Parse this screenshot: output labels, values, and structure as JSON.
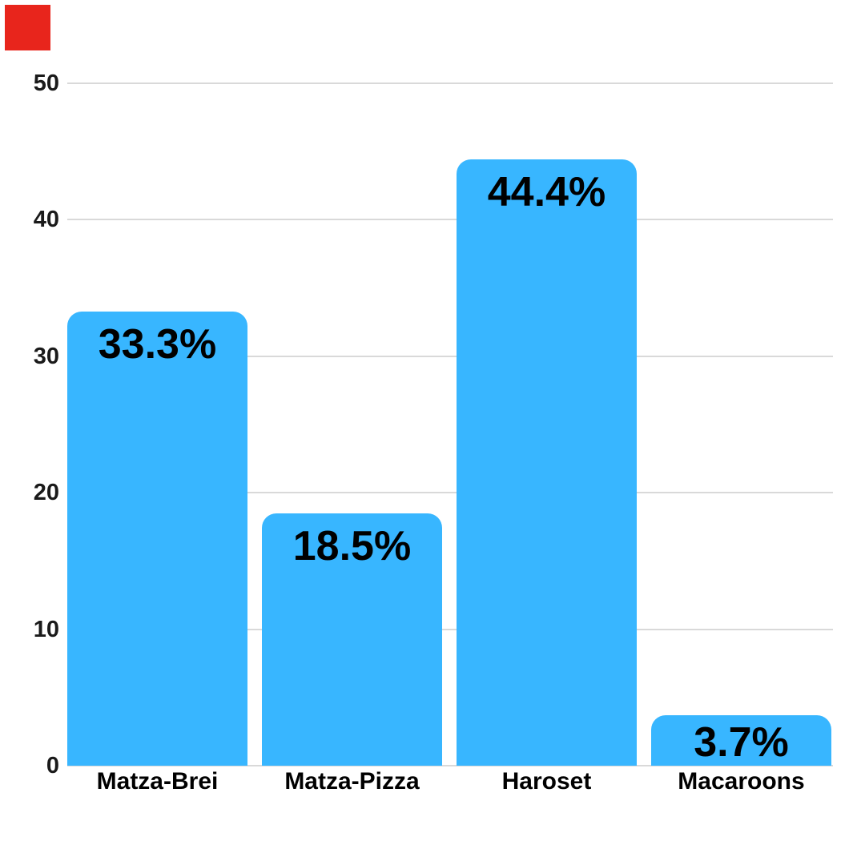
{
  "page": {
    "background_color": "#ffffff"
  },
  "marker": {
    "name": "red corner square",
    "color": "#e8251c"
  },
  "chart_data": {
    "type": "bar",
    "categories": [
      "Matza-Brei",
      "Matza-Pizza",
      "Haroset",
      "Macaroons"
    ],
    "values": [
      33.3,
      18.5,
      44.4,
      3.7
    ],
    "value_labels": [
      "33.3%",
      "18.5%",
      "44.4%",
      "3.7%"
    ],
    "y_ticks": [
      0,
      10,
      20,
      30,
      40,
      50
    ],
    "ylim": [
      0,
      50
    ],
    "grid": "horizontal",
    "legend": "none",
    "xlabel": "",
    "ylabel": "",
    "bar_color": "#38b6ff",
    "value_label_color": "#000000",
    "tick_label_color": "#1a1a1a",
    "category_label_color": "#000000",
    "gridline_color": "#d9d9d9"
  }
}
